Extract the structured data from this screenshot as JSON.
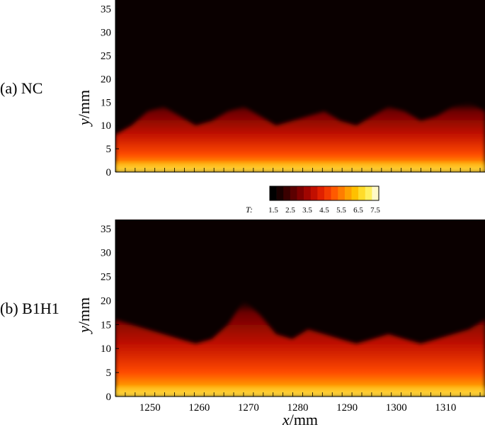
{
  "panels": [
    {
      "label": "(a) NC"
    },
    {
      "label": "(b) B1H1"
    }
  ],
  "colorbar": {
    "title": "T:",
    "ticks": [
      "1.5",
      "2.5",
      "3.5",
      "4.5",
      "5.5",
      "6.5",
      "7.5"
    ],
    "colors": [
      "#000000",
      "#1a0000",
      "#3a0000",
      "#5c0000",
      "#7e0000",
      "#a00500",
      "#c20f00",
      "#e02000",
      "#f23a00",
      "#ff5a00",
      "#ff7d00",
      "#ffa000",
      "#ffc000",
      "#ffdc2a",
      "#fff060",
      "#fffac8"
    ]
  },
  "chart_data": [
    {
      "type": "heatmap",
      "title": "(a) NC",
      "xlabel": "",
      "ylabel": "y/mm",
      "x_range": [
        1243,
        1318
      ],
      "ylim": [
        0,
        36
      ],
      "yticks": [
        0,
        5,
        10,
        15,
        20,
        25,
        30,
        35
      ],
      "variable": "T",
      "color_range": [
        1.5,
        7.5
      ],
      "flame_top_y_mm": [
        8,
        10,
        13,
        14,
        12,
        10,
        11,
        13,
        14,
        12,
        10,
        11,
        12,
        13,
        11,
        10,
        12,
        14,
        13,
        11,
        12,
        14,
        15,
        13
      ]
    },
    {
      "type": "heatmap",
      "title": "(b) B1H1",
      "xlabel": "x/mm",
      "ylabel": "y/mm",
      "x_range": [
        1243,
        1318
      ],
      "xticks": [
        1250,
        1260,
        1270,
        1280,
        1290,
        1300,
        1310
      ],
      "ylim": [
        0,
        36
      ],
      "yticks": [
        0,
        5,
        10,
        15,
        20,
        25,
        30,
        35
      ],
      "variable": "T",
      "color_range": [
        1.5,
        7.5
      ],
      "flame_top_y_mm": [
        16,
        15,
        14,
        13,
        12,
        11,
        12,
        15,
        20,
        17,
        13,
        12,
        14,
        13,
        12,
        11,
        12,
        13,
        12,
        11,
        12,
        13,
        14,
        16
      ]
    }
  ]
}
